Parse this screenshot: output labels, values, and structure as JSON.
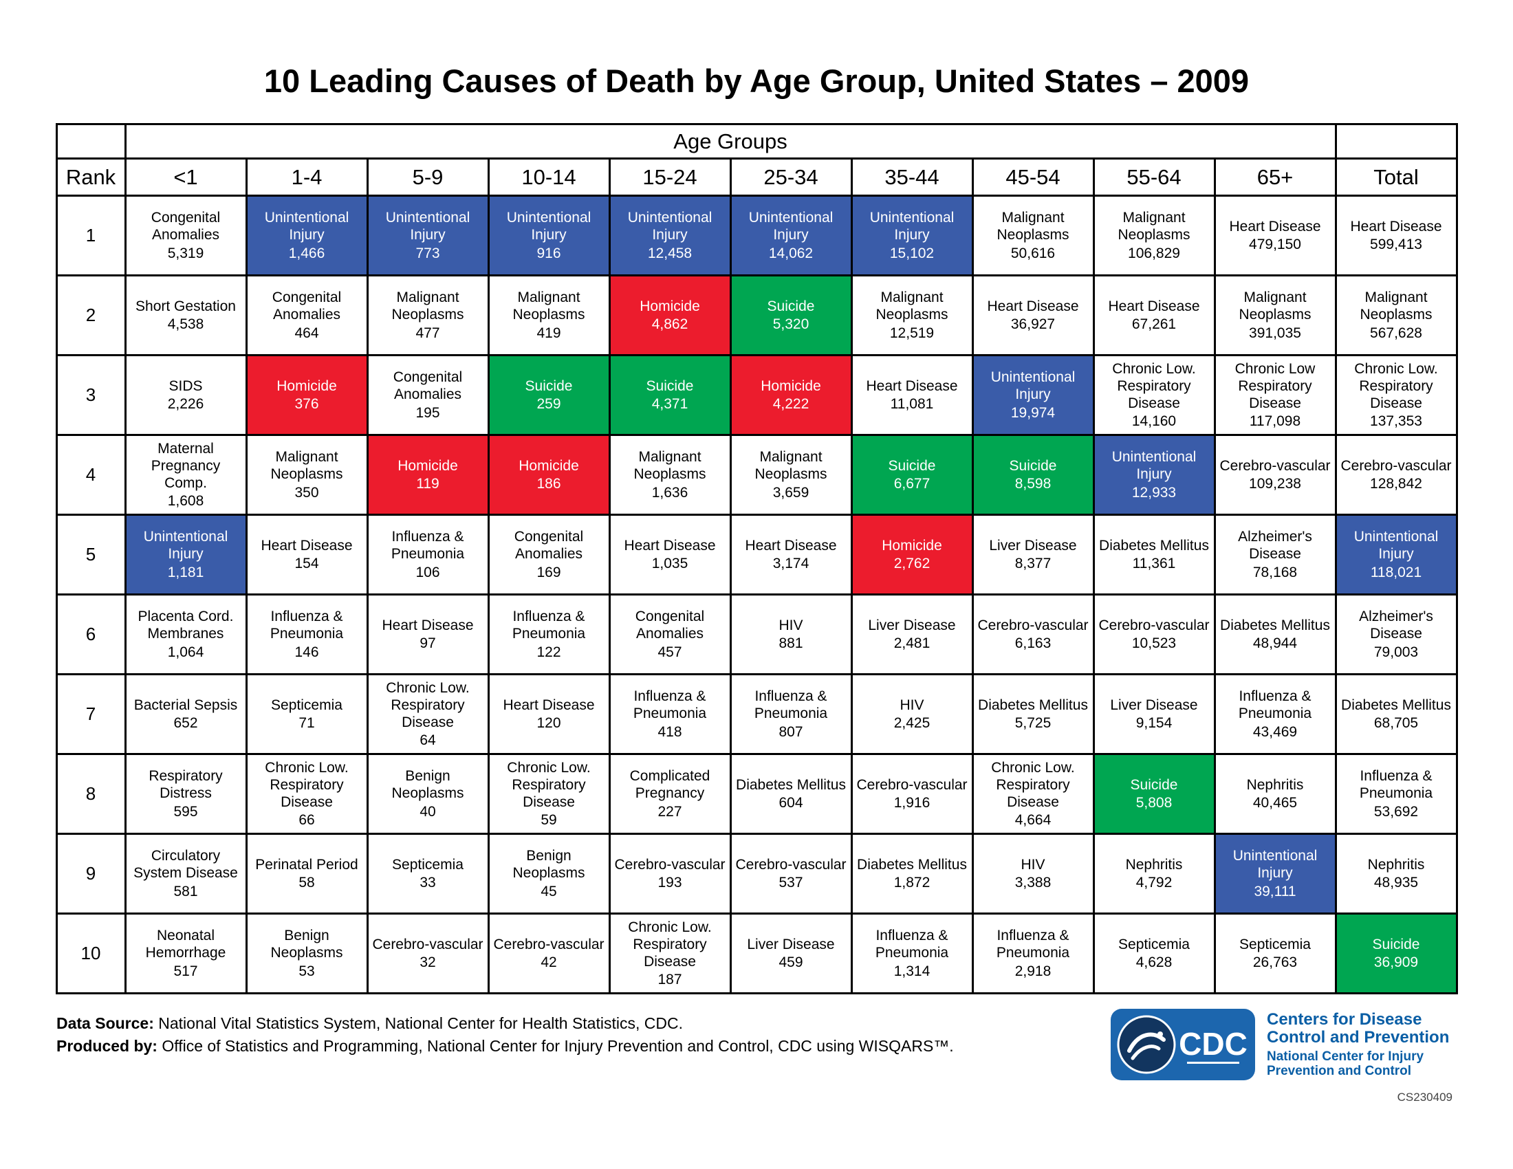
{
  "title": "10 Leading Causes of Death by Age Group, United States – 2009",
  "footer": {
    "data_source_label": "Data Source:",
    "data_source_text": "National Vital Statistics System, National Center for Health Statistics, CDC.",
    "produced_by_label": "Produced by:",
    "produced_by_text": "Office of Statistics and Programming, National Center for Injury Prevention and Control, CDC using WISQARS™."
  },
  "logo": {
    "cdc_letters": "CDC",
    "org_name": "Centers for Disease Control and Prevention",
    "center_name": "National Center for Injury Prevention and Control",
    "code": "CS230409"
  },
  "colors": {
    "highlight_blue": "#3a5ca9",
    "highlight_red": "#ec1c2d",
    "highlight_green": "#00a651",
    "logo_blue": "#1c66ae",
    "logo_navy": "#12355f",
    "logo_text_blue": "#0a5ea5"
  },
  "chart_data": {
    "type": "table",
    "title": "10 Leading Causes of Death by Age Group, United States – 2009",
    "group_header": "Age Groups",
    "rank_header": "Rank",
    "total_header": "Total",
    "age_columns": [
      "<1",
      "1-4",
      "5-9",
      "10-14",
      "15-24",
      "25-34",
      "35-44",
      "45-54",
      "55-64",
      "65+"
    ],
    "highlight_legend": {
      "blue": "Unintentional Injury",
      "red": "Homicide",
      "green": "Suicide"
    },
    "rows": [
      {
        "rank": "1",
        "cells": [
          {
            "cause": "Congenital Anomalies",
            "value": "5,319",
            "highlight": null
          },
          {
            "cause": "Unintentional Injury",
            "value": "1,466",
            "highlight": "blue"
          },
          {
            "cause": "Unintentional Injury",
            "value": "773",
            "highlight": "blue"
          },
          {
            "cause": "Unintentional Injury",
            "value": "916",
            "highlight": "blue"
          },
          {
            "cause": "Unintentional Injury",
            "value": "12,458",
            "highlight": "blue"
          },
          {
            "cause": "Unintentional Injury",
            "value": "14,062",
            "highlight": "blue"
          },
          {
            "cause": "Unintentional Injury",
            "value": "15,102",
            "highlight": "blue"
          },
          {
            "cause": "Malignant Neoplasms",
            "value": "50,616",
            "highlight": null
          },
          {
            "cause": "Malignant Neoplasms",
            "value": "106,829",
            "highlight": null
          },
          {
            "cause": "Heart Disease",
            "value": "479,150",
            "highlight": null
          },
          {
            "cause": "Heart Disease",
            "value": "599,413",
            "highlight": null
          }
        ]
      },
      {
        "rank": "2",
        "cells": [
          {
            "cause": "Short Gestation",
            "value": "4,538",
            "highlight": null
          },
          {
            "cause": "Congenital Anomalies",
            "value": "464",
            "highlight": null
          },
          {
            "cause": "Malignant Neoplasms",
            "value": "477",
            "highlight": null
          },
          {
            "cause": "Malignant Neoplasms",
            "value": "419",
            "highlight": null
          },
          {
            "cause": "Homicide",
            "value": "4,862",
            "highlight": "red"
          },
          {
            "cause": "Suicide",
            "value": "5,320",
            "highlight": "green"
          },
          {
            "cause": "Malignant Neoplasms",
            "value": "12,519",
            "highlight": null
          },
          {
            "cause": "Heart Disease",
            "value": "36,927",
            "highlight": null
          },
          {
            "cause": "Heart Disease",
            "value": "67,261",
            "highlight": null
          },
          {
            "cause": "Malignant Neoplasms",
            "value": "391,035",
            "highlight": null
          },
          {
            "cause": "Malignant Neoplasms",
            "value": "567,628",
            "highlight": null
          }
        ]
      },
      {
        "rank": "3",
        "cells": [
          {
            "cause": "SIDS",
            "value": "2,226",
            "highlight": null
          },
          {
            "cause": "Homicide",
            "value": "376",
            "highlight": "red"
          },
          {
            "cause": "Congenital Anomalies",
            "value": "195",
            "highlight": null
          },
          {
            "cause": "Suicide",
            "value": "259",
            "highlight": "green"
          },
          {
            "cause": "Suicide",
            "value": "4,371",
            "highlight": "green"
          },
          {
            "cause": "Homicide",
            "value": "4,222",
            "highlight": "red"
          },
          {
            "cause": "Heart Disease",
            "value": "11,081",
            "highlight": null
          },
          {
            "cause": "Unintentional Injury",
            "value": "19,974",
            "highlight": "blue"
          },
          {
            "cause": "Chronic Low. Respiratory Disease",
            "value": "14,160",
            "highlight": null
          },
          {
            "cause": "Chronic Low Respiratory Disease",
            "value": "117,098",
            "highlight": null
          },
          {
            "cause": "Chronic Low. Respiratory Disease",
            "value": "137,353",
            "highlight": null
          }
        ]
      },
      {
        "rank": "4",
        "cells": [
          {
            "cause": "Maternal Pregnancy Comp.",
            "value": "1,608",
            "highlight": null
          },
          {
            "cause": "Malignant Neoplasms",
            "value": "350",
            "highlight": null
          },
          {
            "cause": "Homicide",
            "value": "119",
            "highlight": "red"
          },
          {
            "cause": "Homicide",
            "value": "186",
            "highlight": "red"
          },
          {
            "cause": "Malignant Neoplasms",
            "value": "1,636",
            "highlight": null
          },
          {
            "cause": "Malignant Neoplasms",
            "value": "3,659",
            "highlight": null
          },
          {
            "cause": "Suicide",
            "value": "6,677",
            "highlight": "green"
          },
          {
            "cause": "Suicide",
            "value": "8,598",
            "highlight": "green"
          },
          {
            "cause": "Unintentional Injury",
            "value": "12,933",
            "highlight": "blue"
          },
          {
            "cause": "Cerebro-vascular",
            "value": "109,238",
            "highlight": null
          },
          {
            "cause": "Cerebro-vascular",
            "value": "128,842",
            "highlight": null
          }
        ]
      },
      {
        "rank": "5",
        "cells": [
          {
            "cause": "Unintentional Injury",
            "value": "1,181",
            "highlight": "blue"
          },
          {
            "cause": "Heart Disease",
            "value": "154",
            "highlight": null
          },
          {
            "cause": "Influenza & Pneumonia",
            "value": "106",
            "highlight": null
          },
          {
            "cause": "Congenital Anomalies",
            "value": "169",
            "highlight": null
          },
          {
            "cause": "Heart Disease",
            "value": "1,035",
            "highlight": null
          },
          {
            "cause": "Heart Disease",
            "value": "3,174",
            "highlight": null
          },
          {
            "cause": "Homicide",
            "value": "2,762",
            "highlight": "red"
          },
          {
            "cause": "Liver Disease",
            "value": "8,377",
            "highlight": null
          },
          {
            "cause": "Diabetes Mellitus",
            "value": "11,361",
            "highlight": null
          },
          {
            "cause": "Alzheimer's Disease",
            "value": "78,168",
            "highlight": null
          },
          {
            "cause": "Unintentional Injury",
            "value": "118,021",
            "highlight": "blue"
          }
        ]
      },
      {
        "rank": "6",
        "cells": [
          {
            "cause": "Placenta Cord. Membranes",
            "value": "1,064",
            "highlight": null
          },
          {
            "cause": "Influenza & Pneumonia",
            "value": "146",
            "highlight": null
          },
          {
            "cause": "Heart Disease",
            "value": "97",
            "highlight": null
          },
          {
            "cause": "Influenza & Pneumonia",
            "value": "122",
            "highlight": null
          },
          {
            "cause": "Congenital Anomalies",
            "value": "457",
            "highlight": null
          },
          {
            "cause": "HIV",
            "value": "881",
            "highlight": null
          },
          {
            "cause": "Liver Disease",
            "value": "2,481",
            "highlight": null
          },
          {
            "cause": "Cerebro-vascular",
            "value": "6,163",
            "highlight": null
          },
          {
            "cause": "Cerebro-vascular",
            "value": "10,523",
            "highlight": null
          },
          {
            "cause": "Diabetes Mellitus",
            "value": "48,944",
            "highlight": null
          },
          {
            "cause": "Alzheimer's Disease",
            "value": "79,003",
            "highlight": null
          }
        ]
      },
      {
        "rank": "7",
        "cells": [
          {
            "cause": "Bacterial Sepsis",
            "value": "652",
            "highlight": null
          },
          {
            "cause": "Septicemia",
            "value": "71",
            "highlight": null
          },
          {
            "cause": "Chronic Low. Respiratory Disease",
            "value": "64",
            "highlight": null
          },
          {
            "cause": "Heart Disease",
            "value": "120",
            "highlight": null
          },
          {
            "cause": "Influenza & Pneumonia",
            "value": "418",
            "highlight": null
          },
          {
            "cause": "Influenza & Pneumonia",
            "value": "807",
            "highlight": null
          },
          {
            "cause": "HIV",
            "value": "2,425",
            "highlight": null
          },
          {
            "cause": "Diabetes Mellitus",
            "value": "5,725",
            "highlight": null
          },
          {
            "cause": "Liver Disease",
            "value": "9,154",
            "highlight": null
          },
          {
            "cause": "Influenza & Pneumonia",
            "value": "43,469",
            "highlight": null
          },
          {
            "cause": "Diabetes Mellitus",
            "value": "68,705",
            "highlight": null
          }
        ]
      },
      {
        "rank": "8",
        "cells": [
          {
            "cause": "Respiratory Distress",
            "value": "595",
            "highlight": null
          },
          {
            "cause": "Chronic Low. Respiratory Disease",
            "value": "66",
            "highlight": null
          },
          {
            "cause": "Benign Neoplasms",
            "value": "40",
            "highlight": null
          },
          {
            "cause": "Chronic Low. Respiratory Disease",
            "value": "59",
            "highlight": null
          },
          {
            "cause": "Complicated Pregnancy",
            "value": "227",
            "highlight": null
          },
          {
            "cause": "Diabetes Mellitus",
            "value": "604",
            "highlight": null
          },
          {
            "cause": "Cerebro-vascular",
            "value": "1,916",
            "highlight": null
          },
          {
            "cause": "Chronic Low. Respiratory Disease",
            "value": "4,664",
            "highlight": null
          },
          {
            "cause": "Suicide",
            "value": "5,808",
            "highlight": "green"
          },
          {
            "cause": "Nephritis",
            "value": "40,465",
            "highlight": null
          },
          {
            "cause": "Influenza & Pneumonia",
            "value": "53,692",
            "highlight": null
          }
        ]
      },
      {
        "rank": "9",
        "cells": [
          {
            "cause": "Circulatory System Disease",
            "value": "581",
            "highlight": null
          },
          {
            "cause": "Perinatal Period",
            "value": "58",
            "highlight": null
          },
          {
            "cause": "Septicemia",
            "value": "33",
            "highlight": null
          },
          {
            "cause": "Benign Neoplasms",
            "value": "45",
            "highlight": null
          },
          {
            "cause": "Cerebro-vascular",
            "value": "193",
            "highlight": null
          },
          {
            "cause": "Cerebro-vascular",
            "value": "537",
            "highlight": null
          },
          {
            "cause": "Diabetes Mellitus",
            "value": "1,872",
            "highlight": null
          },
          {
            "cause": "HIV",
            "value": "3,388",
            "highlight": null
          },
          {
            "cause": "Nephritis",
            "value": "4,792",
            "highlight": null
          },
          {
            "cause": "Unintentional Injury",
            "value": "39,111",
            "highlight": "blue"
          },
          {
            "cause": "Nephritis",
            "value": "48,935",
            "highlight": null
          }
        ]
      },
      {
        "rank": "10",
        "cells": [
          {
            "cause": "Neonatal Hemorrhage",
            "value": "517",
            "highlight": null
          },
          {
            "cause": "Benign Neoplasms",
            "value": "53",
            "highlight": null
          },
          {
            "cause": "Cerebro-vascular",
            "value": "32",
            "highlight": null
          },
          {
            "cause": "Cerebro-vascular",
            "value": "42",
            "highlight": null
          },
          {
            "cause": "Chronic Low. Respiratory Disease",
            "value": "187",
            "highlight": null
          },
          {
            "cause": "Liver Disease",
            "value": "459",
            "highlight": null
          },
          {
            "cause": "Influenza & Pneumonia",
            "value": "1,314",
            "highlight": null
          },
          {
            "cause": "Influenza & Pneumonia",
            "value": "2,918",
            "highlight": null
          },
          {
            "cause": "Septicemia",
            "value": "4,628",
            "highlight": null
          },
          {
            "cause": "Septicemia",
            "value": "26,763",
            "highlight": null
          },
          {
            "cause": "Suicide",
            "value": "36,909",
            "highlight": "green"
          }
        ]
      }
    ]
  }
}
